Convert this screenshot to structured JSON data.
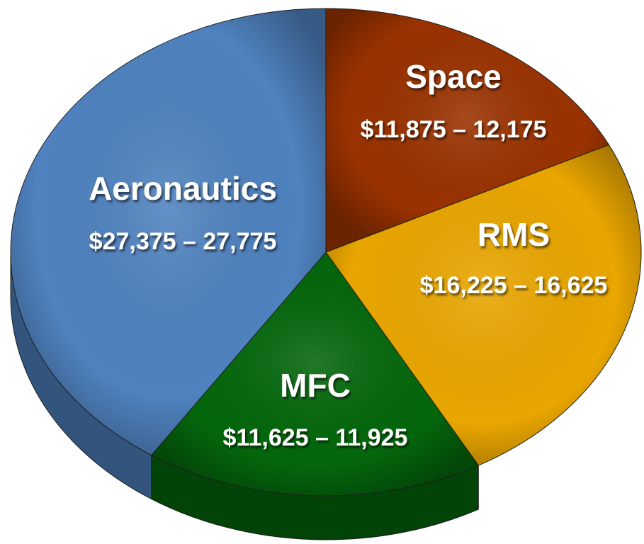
{
  "chart_data": {
    "type": "pie",
    "categories": [
      "Space",
      "RMS",
      "MFC",
      "Aeronautics"
    ],
    "values": [
      [
        11875,
        12175
      ],
      [
        16225,
        16625
      ],
      [
        11625,
        11925
      ],
      [
        27375,
        27775
      ]
    ],
    "value_labels": [
      "$11,875 – 12,175",
      "$16,225 – 16,625",
      "$11,625 – 11,925",
      "$27,375 – 27,775"
    ],
    "colors": [
      "#9a3200",
      "#e9a600",
      "#04670c",
      "#4f82bf"
    ]
  }
}
